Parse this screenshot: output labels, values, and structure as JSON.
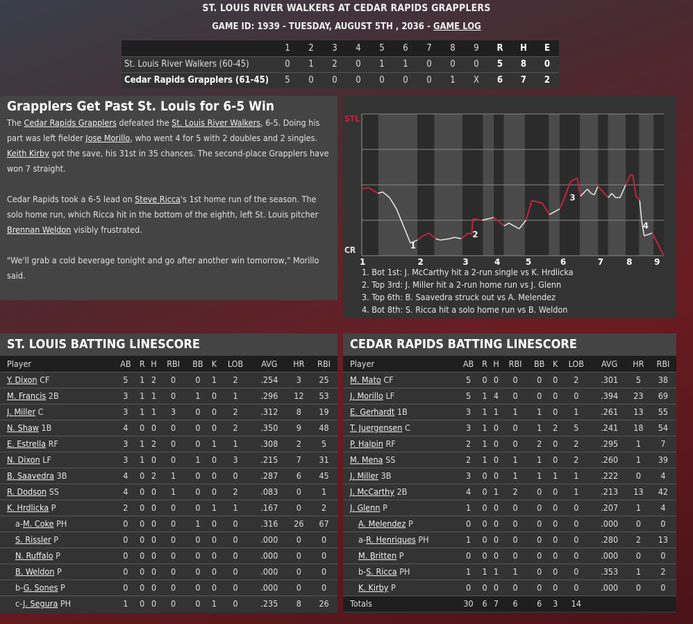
{
  "header": {
    "title": "ST. LOUIS RIVER WALKERS AT CEDAR RAPIDS GRAPPLERS",
    "subtitle": "GAME ID: 1939 - TUESDAY, AUGUST 5TH , 2036 - ",
    "game_log": "GAME LOG"
  },
  "linescore": {
    "columns": [
      "1",
      "2",
      "3",
      "4",
      "5",
      "6",
      "7",
      "8",
      "9",
      "R",
      "H",
      "E"
    ],
    "teams": [
      {
        "name": "St. Louis River Walkers (60-45)",
        "bold": false,
        "scores": [
          "0",
          "1",
          "2",
          "0",
          "1",
          "1",
          "0",
          "0",
          "0",
          "5",
          "8",
          "0"
        ]
      },
      {
        "name": "Cedar Rapids Grapplers (61-45)",
        "bold": true,
        "scores": [
          "5",
          "0",
          "0",
          "0",
          "0",
          "0",
          "0",
          "1",
          "X",
          "6",
          "7",
          "2"
        ]
      }
    ]
  },
  "article": {
    "headline": "Grapplers Get Past St. Louis for 6-5 Win",
    "paragraphs": [
      [
        {
          "t": "The "
        },
        {
          "t": "Cedar Rapids Grapplers",
          "link": true
        },
        {
          "t": " defeated the "
        },
        {
          "t": "St. Louis River Walkers",
          "link": true
        },
        {
          "t": ", 6-5. Doing his part was left fielder "
        },
        {
          "t": "Jose Morillo",
          "link": true
        },
        {
          "t": ", who went 4 for 5 with 2 doubles and 2 singles. "
        },
        {
          "t": "Keith Kirby",
          "link": true
        },
        {
          "t": " got the save, his 31st in 35 chances. The second-place Grapplers have won 7 straight."
        }
      ],
      [
        {
          "t": "Cedar Rapids took a 6-5 lead on "
        },
        {
          "t": "Steve Ricca",
          "link": true
        },
        {
          "t": "'s 1st home run of the season. The solo home run, which Ricca hit in the bottom of the eighth, left St. Louis pitcher "
        },
        {
          "t": "Brennan Weldon",
          "link": true
        },
        {
          "t": " visibly frustrated."
        }
      ],
      [
        {
          "t": "\"We'll grab a cold beverage tonight and go after another win tomorrow,\" Morillo said."
        }
      ]
    ]
  },
  "chart_data": {
    "type": "line",
    "title": "Win Probability",
    "top_label": "STL",
    "bottom_label": "CR",
    "ylim": [
      0,
      1
    ],
    "xlim": [
      0,
      1
    ],
    "colors": {
      "stl": "#c0243c",
      "cr": "#e8e8e8"
    },
    "inning_labels": [
      {
        "label": "1",
        "x": 0
      },
      {
        "label": "2",
        "x": 0.192
      },
      {
        "label": "3",
        "x": 0.341
      },
      {
        "label": "4",
        "x": 0.446
      },
      {
        "label": "5",
        "x": 0.549
      },
      {
        "label": "6",
        "x": 0.664
      },
      {
        "label": "7",
        "x": 0.788
      },
      {
        "label": "8",
        "x": 0.883
      },
      {
        "label": "9",
        "x": 0.975
      }
    ],
    "bottom_half_ranges": [
      [
        0.055,
        0.184
      ],
      [
        0.24,
        0.333
      ],
      [
        0.401,
        0.437
      ],
      [
        0.47,
        0.54
      ],
      [
        0.619,
        0.655
      ],
      [
        0.722,
        0.782
      ],
      [
        0.815,
        0.874
      ],
      [
        0.918,
        0.966
      ]
    ],
    "points": [
      [
        0,
        0.47,
        "s"
      ],
      [
        0.023,
        0.48,
        "s"
      ],
      [
        0.054,
        0.44,
        "s"
      ],
      [
        0.069,
        0.45,
        "c"
      ],
      [
        0.092,
        0.41,
        "c"
      ],
      [
        0.115,
        0.33,
        "c"
      ],
      [
        0.138,
        0.21,
        "c"
      ],
      [
        0.161,
        0.09,
        "c"
      ],
      [
        0.184,
        0.11,
        "c"
      ],
      [
        0.203,
        0.14,
        "s"
      ],
      [
        0.222,
        0.16,
        "s"
      ],
      [
        0.245,
        0.12,
        "s"
      ],
      [
        0.26,
        0.11,
        "c"
      ],
      [
        0.291,
        0.12,
        "c"
      ],
      [
        0.307,
        0.13,
        "c"
      ],
      [
        0.33,
        0.12,
        "c"
      ],
      [
        0.352,
        0.16,
        "s"
      ],
      [
        0.364,
        0.15,
        "s"
      ],
      [
        0.368,
        0.26,
        "s"
      ],
      [
        0.398,
        0.25,
        "s"
      ],
      [
        0.437,
        0.27,
        "c"
      ],
      [
        0.471,
        0.21,
        "s"
      ],
      [
        0.487,
        0.23,
        "c"
      ],
      [
        0.521,
        0.19,
        "c"
      ],
      [
        0.544,
        0.25,
        "c"
      ],
      [
        0.563,
        0.39,
        "s"
      ],
      [
        0.598,
        0.37,
        "s"
      ],
      [
        0.621,
        0.29,
        "s"
      ],
      [
        0.655,
        0.33,
        "c"
      ],
      [
        0.67,
        0.4,
        "s"
      ],
      [
        0.69,
        0.52,
        "s"
      ],
      [
        0.713,
        0.55,
        "s"
      ],
      [
        0.724,
        0.42,
        "s"
      ],
      [
        0.747,
        0.47,
        "c"
      ],
      [
        0.759,
        0.44,
        "c"
      ],
      [
        0.77,
        0.43,
        "c"
      ],
      [
        0.782,
        0.49,
        "c"
      ],
      [
        0.816,
        0.41,
        "s"
      ],
      [
        0.828,
        0.44,
        "c"
      ],
      [
        0.84,
        0.41,
        "c"
      ],
      [
        0.855,
        0.41,
        "c"
      ],
      [
        0.874,
        0.5,
        "c"
      ],
      [
        0.889,
        0.57,
        "s"
      ],
      [
        0.897,
        0.57,
        "s"
      ],
      [
        0.908,
        0.42,
        "s"
      ],
      [
        0.92,
        0.39,
        "s"
      ],
      [
        0.927,
        0.24,
        "c"
      ],
      [
        0.935,
        0.14,
        "c"
      ],
      [
        0.962,
        0.16,
        "c"
      ],
      [
        0.981,
        0.08,
        "s"
      ],
      [
        1,
        0,
        "s"
      ]
    ],
    "markers": [
      {
        "label": "1",
        "x": 0.167,
        "y": 0.08
      },
      {
        "label": "2",
        "x": 0.373,
        "y": 0.16
      },
      {
        "label": "3",
        "x": 0.695,
        "y": 0.42
      },
      {
        "label": "4",
        "x": 0.937,
        "y": 0.22
      }
    ],
    "events": [
      "1. Bot 1st: J. McCarthy hit a 2-run single vs K. Hrdlicka",
      "2. Top 3rd: J. Miller hit a 2-run home run vs J. Glenn",
      "3. Top 6th: B. Saavedra struck out vs A. Melendez",
      "4. Bot 8th: S. Ricca hit a solo home run vs B. Weldon"
    ]
  },
  "batting": [
    {
      "title": "ST. LOUIS BATTING LINESCORE",
      "columns": [
        "Player",
        "AB",
        "R",
        "H",
        "RBI",
        "BB",
        "K",
        "LOB",
        "AVG",
        "HR",
        "RBI"
      ],
      "rows": [
        {
          "prefix": "",
          "name": "Y. Dixon",
          "pos": "CF",
          "indent": false,
          "stats": [
            "5",
            "1",
            "2",
            "0",
            "0",
            "1",
            "2",
            ".254",
            "3",
            "25"
          ]
        },
        {
          "prefix": "",
          "name": "M. Francis",
          "pos": "2B",
          "indent": false,
          "stats": [
            "3",
            "1",
            "1",
            "0",
            "1",
            "0",
            "1",
            ".296",
            "12",
            "53"
          ]
        },
        {
          "prefix": "",
          "name": "J. Miller",
          "pos": "C",
          "indent": false,
          "stats": [
            "3",
            "1",
            "1",
            "3",
            "0",
            "0",
            "2",
            ".312",
            "8",
            "19"
          ]
        },
        {
          "prefix": "",
          "name": "N. Shaw",
          "pos": "1B",
          "indent": false,
          "stats": [
            "4",
            "0",
            "0",
            "0",
            "0",
            "0",
            "2",
            ".350",
            "9",
            "48"
          ]
        },
        {
          "prefix": "",
          "name": "E. Estrella",
          "pos": "RF",
          "indent": false,
          "stats": [
            "3",
            "1",
            "2",
            "0",
            "0",
            "1",
            "1",
            ".308",
            "2",
            "5"
          ]
        },
        {
          "prefix": "",
          "name": "N. Dixon",
          "pos": "LF",
          "indent": false,
          "stats": [
            "3",
            "1",
            "0",
            "0",
            "1",
            "0",
            "3",
            ".215",
            "7",
            "31"
          ]
        },
        {
          "prefix": "",
          "name": "B. Saavedra",
          "pos": "3B",
          "indent": false,
          "stats": [
            "4",
            "0",
            "2",
            "1",
            "0",
            "0",
            "0",
            ".287",
            "6",
            "45"
          ]
        },
        {
          "prefix": "",
          "name": "R. Dodson",
          "pos": "SS",
          "indent": false,
          "stats": [
            "4",
            "0",
            "0",
            "1",
            "0",
            "0",
            "2",
            ".083",
            "0",
            "1"
          ]
        },
        {
          "prefix": "",
          "name": "K. Hrdlicka",
          "pos": "P",
          "indent": false,
          "stats": [
            "2",
            "0",
            "0",
            "0",
            "0",
            "1",
            "1",
            ".167",
            "0",
            "2"
          ]
        },
        {
          "prefix": "a-",
          "name": "M. Coke",
          "pos": "PH",
          "indent": true,
          "stats": [
            "0",
            "0",
            "0",
            "0",
            "1",
            "0",
            "0",
            ".316",
            "26",
            "67"
          ]
        },
        {
          "prefix": "",
          "name": "S. Rissler",
          "pos": "P",
          "indent": true,
          "stats": [
            "0",
            "0",
            "0",
            "0",
            "0",
            "0",
            "0",
            ".000",
            "0",
            "0"
          ]
        },
        {
          "prefix": "",
          "name": "N. Ruffalo",
          "pos": "P",
          "indent": true,
          "stats": [
            "0",
            "0",
            "0",
            "0",
            "0",
            "0",
            "0",
            ".000",
            "0",
            "0"
          ]
        },
        {
          "prefix": "",
          "name": "B. Weldon",
          "pos": "P",
          "indent": true,
          "stats": [
            "0",
            "0",
            "0",
            "0",
            "0",
            "0",
            "0",
            ".000",
            "0",
            "0"
          ]
        },
        {
          "prefix": "b-",
          "name": "G. Sones",
          "pos": "P",
          "indent": true,
          "stats": [
            "0",
            "0",
            "0",
            "0",
            "0",
            "0",
            "0",
            ".000",
            "0",
            "0"
          ]
        },
        {
          "prefix": "c-",
          "name": "J. Segura",
          "pos": "PH",
          "indent": true,
          "stats": [
            "1",
            "0",
            "0",
            "0",
            "0",
            "1",
            "0",
            ".235",
            "8",
            "26"
          ]
        }
      ]
    },
    {
      "title": "CEDAR RAPIDS BATTING LINESCORE",
      "columns": [
        "Player",
        "AB",
        "R",
        "H",
        "RBI",
        "BB",
        "K",
        "LOB",
        "AVG",
        "HR",
        "RBI"
      ],
      "rows": [
        {
          "prefix": "",
          "name": "M. Mato",
          "pos": "CF",
          "indent": false,
          "stats": [
            "5",
            "0",
            "0",
            "0",
            "0",
            "0",
            "2",
            ".301",
            "5",
            "38"
          ]
        },
        {
          "prefix": "",
          "name": "J. Morillo",
          "pos": "LF",
          "indent": false,
          "stats": [
            "5",
            "1",
            "4",
            "0",
            "0",
            "0",
            "0",
            ".394",
            "23",
            "69"
          ]
        },
        {
          "prefix": "",
          "name": "E. Gerhardt",
          "pos": "1B",
          "indent": false,
          "stats": [
            "3",
            "1",
            "1",
            "1",
            "1",
            "0",
            "1",
            ".261",
            "13",
            "55"
          ]
        },
        {
          "prefix": "",
          "name": "T. Juergensen",
          "pos": "C",
          "indent": false,
          "stats": [
            "3",
            "1",
            "0",
            "0",
            "1",
            "2",
            "5",
            ".241",
            "18",
            "54"
          ]
        },
        {
          "prefix": "",
          "name": "P. Halpin",
          "pos": "RF",
          "indent": false,
          "stats": [
            "2",
            "1",
            "0",
            "0",
            "2",
            "0",
            "2",
            ".295",
            "1",
            "7"
          ]
        },
        {
          "prefix": "",
          "name": "M. Mena",
          "pos": "SS",
          "indent": false,
          "stats": [
            "2",
            "1",
            "0",
            "1",
            "1",
            "0",
            "2",
            ".260",
            "1",
            "39"
          ]
        },
        {
          "prefix": "",
          "name": "J. Miller",
          "pos": "3B",
          "indent": false,
          "stats": [
            "3",
            "0",
            "0",
            "1",
            "1",
            "1",
            "1",
            ".222",
            "0",
            "4"
          ]
        },
        {
          "prefix": "",
          "name": "J. McCarthy",
          "pos": "2B",
          "indent": false,
          "stats": [
            "4",
            "0",
            "1",
            "2",
            "0",
            "0",
            "1",
            ".213",
            "13",
            "42"
          ]
        },
        {
          "prefix": "",
          "name": "J. Glenn",
          "pos": "P",
          "indent": false,
          "stats": [
            "1",
            "0",
            "0",
            "0",
            "0",
            "0",
            "0",
            ".207",
            "1",
            "4"
          ]
        },
        {
          "prefix": "",
          "name": "A. Melendez",
          "pos": "P",
          "indent": true,
          "stats": [
            "0",
            "0",
            "0",
            "0",
            "0",
            "0",
            "0",
            ".000",
            "0",
            "0"
          ]
        },
        {
          "prefix": "a-",
          "name": "R. Henriques",
          "pos": "PH",
          "indent": true,
          "stats": [
            "1",
            "0",
            "0",
            "0",
            "0",
            "0",
            "0",
            ".280",
            "2",
            "13"
          ]
        },
        {
          "prefix": "",
          "name": "M. Britten",
          "pos": "P",
          "indent": true,
          "stats": [
            "0",
            "0",
            "0",
            "0",
            "0",
            "0",
            "0",
            ".000",
            "0",
            "0"
          ]
        },
        {
          "prefix": "b-",
          "name": "S. Ricca",
          "pos": "PH",
          "indent": true,
          "stats": [
            "1",
            "1",
            "1",
            "1",
            "0",
            "0",
            "0",
            ".353",
            "1",
            "2"
          ]
        },
        {
          "prefix": "",
          "name": "K. Kirby",
          "pos": "P",
          "indent": true,
          "stats": [
            "0",
            "0",
            "0",
            "0",
            "0",
            "0",
            "0",
            ".000",
            "0",
            "0"
          ]
        }
      ],
      "totals": {
        "label": "Totals",
        "stats": [
          "30",
          "6",
          "7",
          "6",
          "6",
          "3",
          "14",
          "",
          "",
          ""
        ]
      }
    }
  ]
}
